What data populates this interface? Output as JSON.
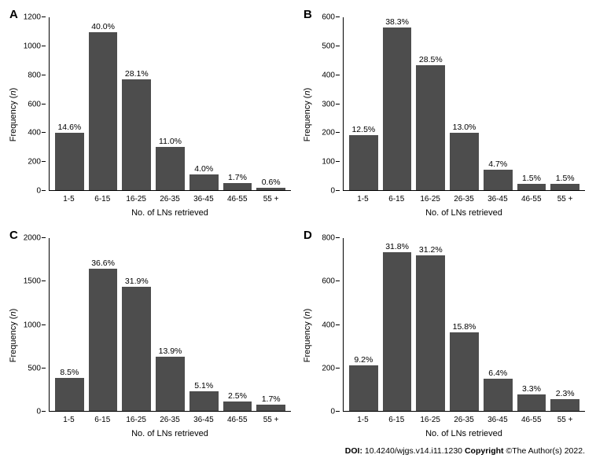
{
  "figure": {
    "background_color": "#ffffff",
    "bar_color": "#4d4d4d",
    "axis_color": "#000000",
    "font_family": "Arial",
    "panel_label_fontsize": 15,
    "bar_label_fontsize": 10.5,
    "tick_fontsize": 10,
    "axis_label_fontsize": 11
  },
  "panels": [
    {
      "id": "A",
      "ylabel": "Frequency (n)",
      "ylabel_italic_segment": "n",
      "xlabel": "No. of LNs retrieved",
      "ymax": 1200,
      "ytick_step": 200,
      "yticks": [
        0,
        200,
        400,
        600,
        800,
        1000,
        1200
      ],
      "categories": [
        "1-5",
        "6-15",
        "16-25",
        "26-35",
        "36-45",
        "46-55",
        "55 +"
      ],
      "percent_labels": [
        "14.6%",
        "40.0%",
        "28.1%",
        "11.0%",
        "4.0%",
        "1.7%",
        "0.6%"
      ],
      "values": [
        400,
        1095,
        770,
        301,
        110,
        47,
        16
      ],
      "type": "bar"
    },
    {
      "id": "B",
      "ylabel": "Frequency (n)",
      "ylabel_italic_segment": "n",
      "xlabel": "No. of LNs retrieved",
      "ymax": 600,
      "ytick_step": 100,
      "yticks": [
        0,
        100,
        200,
        300,
        400,
        500,
        600
      ],
      "categories": [
        "1-5",
        "6-15",
        "16-25",
        "26-35",
        "36-45",
        "46-55",
        "55 +"
      ],
      "percent_labels": [
        "12.5%",
        "38.3%",
        "28.5%",
        "13.0%",
        "4.7%",
        "1.5%",
        "1.5%"
      ],
      "values": [
        190,
        582,
        433,
        198,
        71,
        23,
        23
      ],
      "type": "bar"
    },
    {
      "id": "C",
      "ylabel": "Frequency (n)",
      "ylabel_italic_segment": "n",
      "xlabel": "No. of LNs retrieved",
      "ymax": 2000,
      "ytick_step": 500,
      "yticks": [
        0,
        500,
        1000,
        1500,
        2000
      ],
      "categories": [
        "1-5",
        "6-15",
        "16-25",
        "26-35",
        "36-45",
        "46-55",
        "55 +"
      ],
      "percent_labels": [
        "8.5%",
        "36.6%",
        "31.9%",
        "13.9%",
        "5.1%",
        "2.5%",
        "1.7%"
      ],
      "values": [
        382,
        1647,
        1436,
        626,
        230,
        113,
        77
      ],
      "type": "bar"
    },
    {
      "id": "D",
      "ylabel": "Frequency (n)",
      "ylabel_italic_segment": "n",
      "xlabel": "No. of LNs retrieved",
      "ymax": 800,
      "ytick_step": 200,
      "yticks": [
        0,
        200,
        400,
        600,
        800
      ],
      "categories": [
        "1-5",
        "6-15",
        "16-25",
        "26-35",
        "36-45",
        "46-55",
        "55 +"
      ],
      "percent_labels": [
        "9.2%",
        "31.8%",
        "31.2%",
        "15.8%",
        "6.4%",
        "3.3%",
        "2.3%"
      ],
      "values": [
        212,
        734,
        720,
        365,
        148,
        76,
        53
      ],
      "type": "bar"
    }
  ],
  "citation": {
    "doi_label": "DOI:",
    "doi_value": "10.4240/wjgs.v14.i11.1230",
    "copyright_label": "Copyright",
    "copyright_value": "©The Author(s) 2022."
  }
}
